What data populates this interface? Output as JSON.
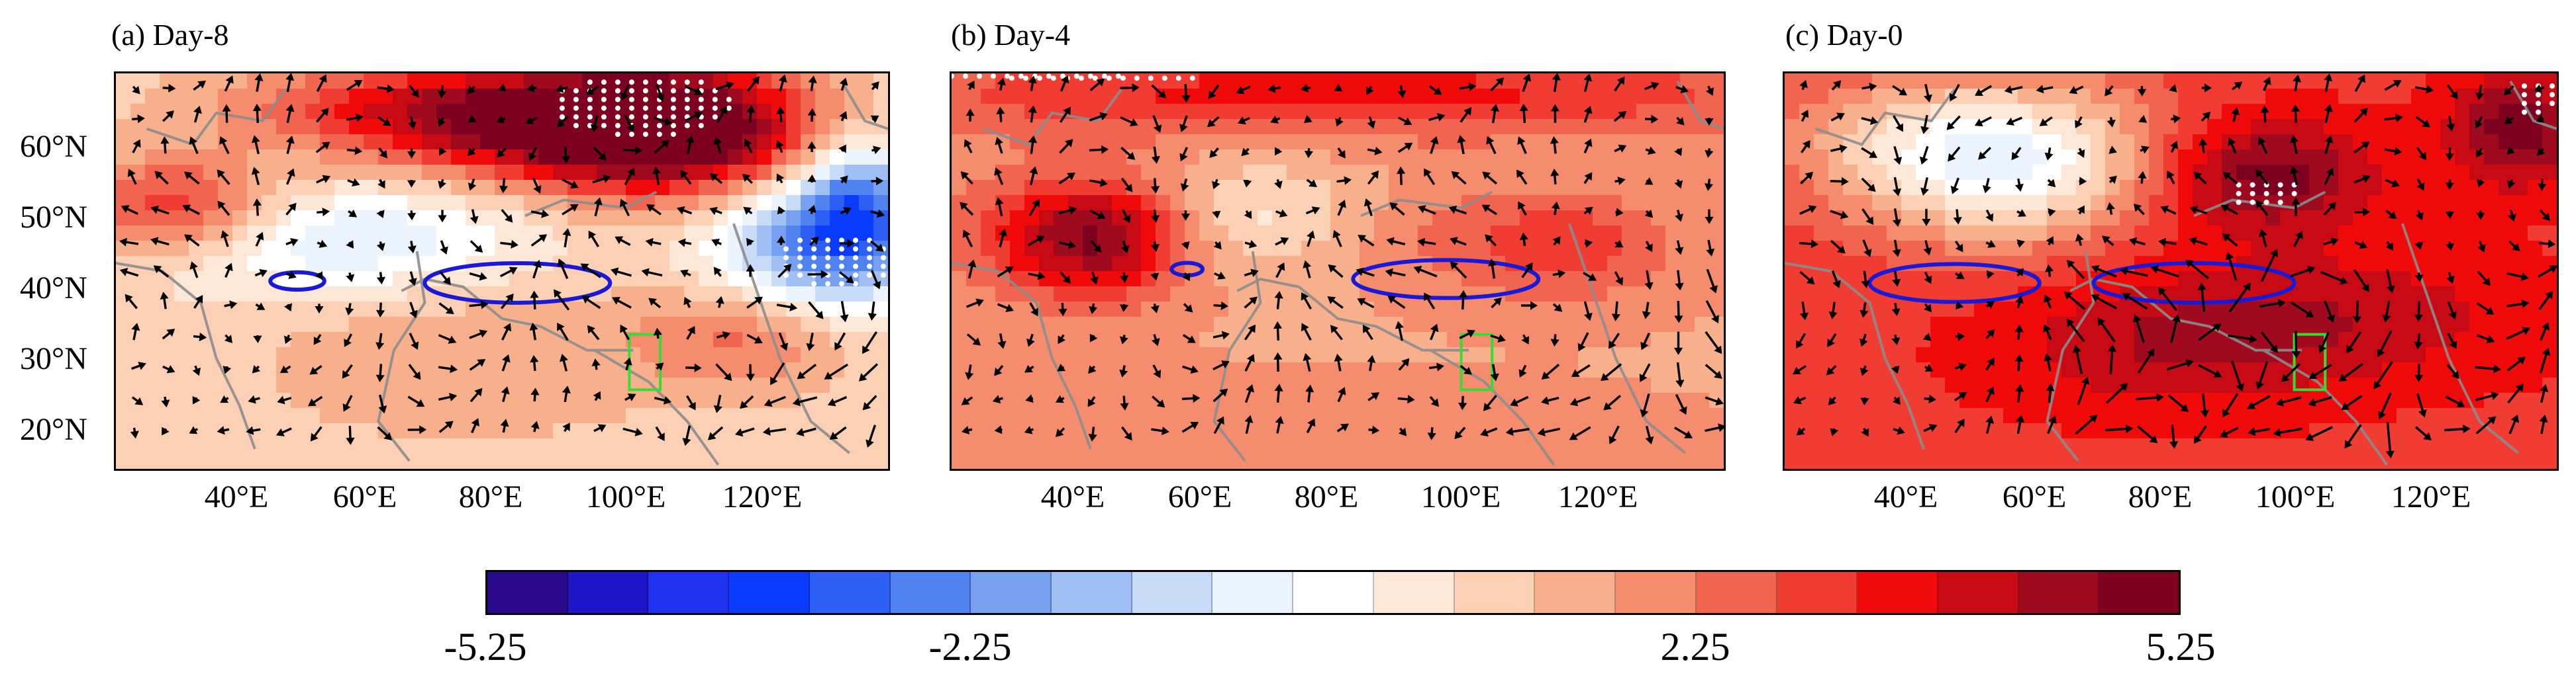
{
  "figure": {
    "colormap_name": "blue-white-red diverging",
    "contour_color": "#1a1ad6",
    "box_color": "#33dd33",
    "coastline_color": "#8c8c8c",
    "stipple_color": "#ffffff",
    "arrow_color": "#000000"
  },
  "lat_ticks": [
    "60°N",
    "50°N",
    "40°N",
    "30°N",
    "20°N"
  ],
  "lon_ticks": [
    "40°E",
    "60°E",
    "80°E",
    "100°E",
    "120°E"
  ],
  "panels": [
    {
      "id": "a",
      "title": "(a) Day-8"
    },
    {
      "id": "b",
      "title": "(b) Day-4"
    },
    {
      "id": "c",
      "title": "(c) Day-0"
    }
  ],
  "colorbar": {
    "min": -5.25,
    "max": 5.25,
    "labels": [
      "-5.25",
      "-2.25",
      "2.25",
      "5.25"
    ],
    "label_values": [
      -5.25,
      -2.25,
      2.25,
      5.25
    ],
    "colors": [
      "#2a0a8c",
      "#1e14c8",
      "#1e32f0",
      "#0a3cff",
      "#2d5ff5",
      "#5082f0",
      "#78a0f0",
      "#a0c0f5",
      "#c8dcf8",
      "#ebf3fd",
      "#ffffff",
      "#fde8d8",
      "#fbd0b4",
      "#f8b08c",
      "#f58c6e",
      "#f06450",
      "#f03c32",
      "#f00a0a",
      "#c80a14",
      "#a00a1e",
      "#7d0020"
    ]
  }
}
